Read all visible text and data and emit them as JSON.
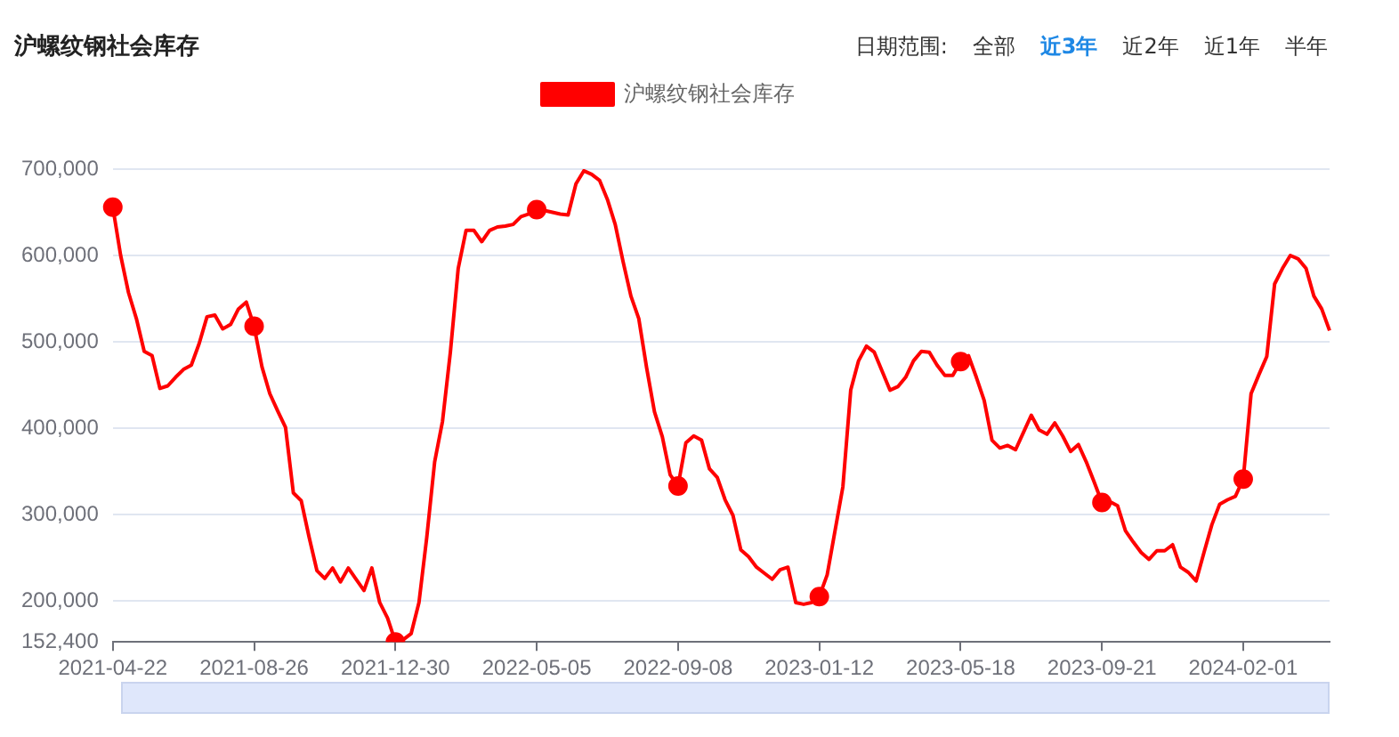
{
  "chart_data": {
    "type": "line",
    "title": "沪螺纹钢社会库存",
    "annotations": [
      "日期范围:",
      "全部",
      "近3年",
      "近2年",
      "近1年",
      "半年"
    ],
    "categories": [
      "2021-04-22",
      null,
      null,
      null,
      null,
      null,
      null,
      null,
      null,
      null,
      null,
      null,
      null,
      null,
      null,
      null,
      null,
      null,
      "2021-08-26",
      null,
      null,
      null,
      null,
      null,
      null,
      null,
      null,
      null,
      null,
      null,
      null,
      null,
      null,
      null,
      null,
      null,
      "2021-12-30",
      null,
      null,
      null,
      null,
      null,
      null,
      null,
      null,
      null,
      null,
      null,
      null,
      null,
      null,
      null,
      null,
      null,
      "2022-05-05",
      null,
      null,
      null,
      null,
      null,
      null,
      null,
      null,
      null,
      null,
      null,
      null,
      null,
      null,
      null,
      null,
      null,
      "2022-09-08",
      null,
      null,
      null,
      null,
      null,
      null,
      null,
      null,
      null,
      null,
      null,
      null,
      null,
      null,
      null,
      null,
      null,
      "2023-01-12",
      null,
      null,
      null,
      null,
      null,
      null,
      null,
      null,
      null,
      null,
      null,
      null,
      null,
      null,
      null,
      null,
      null,
      "2023-05-18",
      null,
      null,
      null,
      null,
      null,
      null,
      null,
      null,
      null,
      null,
      null,
      null,
      null,
      null,
      null,
      null,
      null,
      "2023-09-21",
      null,
      null,
      null,
      null,
      null,
      null,
      null,
      null,
      null,
      null,
      null,
      null,
      null,
      null,
      null,
      null,
      null,
      "2024-02-01",
      null,
      null,
      null,
      null,
      null,
      null,
      null,
      null,
      null,
      null,
      null
    ],
    "series": [
      {
        "name": "沪螺纹钢社会库存",
        "color": "#ff0000",
        "values": [
          656000,
          600000,
          557000,
          527000,
          489000,
          484000,
          446000,
          449000,
          459000,
          468000,
          473000,
          498000,
          529000,
          531000,
          515000,
          520000,
          538000,
          546000,
          518000,
          471000,
          440000,
          420000,
          401000,
          325000,
          316000,
          274000,
          235000,
          226000,
          238000,
          222000,
          238000,
          225000,
          212000,
          238000,
          198000,
          180000,
          152400,
          155000,
          162000,
          198000,
          274000,
          361000,
          408000,
          488000,
          585000,
          629000,
          629000,
          616000,
          629000,
          633000,
          634000,
          636000,
          645000,
          648000,
          653000,
          652000,
          650000,
          648000,
          647000,
          683000,
          698000,
          694000,
          687000,
          665000,
          636000,
          593000,
          553000,
          527000,
          470000,
          419000,
          390000,
          346000,
          333000,
          383000,
          391000,
          386000,
          353000,
          343000,
          317000,
          299000,
          259000,
          251000,
          239000,
          232000,
          225000,
          236000,
          239000,
          198000,
          196000,
          198000,
          205000,
          230000,
          281000,
          332000,
          444000,
          478000,
          495000,
          488000,
          466000,
          444000,
          448000,
          459000,
          478000,
          489000,
          488000,
          473000,
          461000,
          461000,
          477000,
          484000,
          459000,
          432000,
          386000,
          377000,
          380000,
          375000,
          395000,
          415000,
          398000,
          393000,
          406000,
          391000,
          373000,
          381000,
          361000,
          338000,
          314000,
          315000,
          310000,
          281000,
          268000,
          256000,
          248000,
          258000,
          258000,
          265000,
          239000,
          233000,
          223000,
          256000,
          288000,
          312000,
          317000,
          321000,
          341000,
          440000,
          462000,
          483000,
          567000,
          585000,
          600000,
          596000,
          585000,
          553000,
          538000,
          513000
        ]
      },
      {
        "type": "scatter",
        "color": "#ff0000",
        "marker": "circle",
        "values": [
          656000,
          null,
          null,
          null,
          null,
          null,
          null,
          null,
          null,
          null,
          null,
          null,
          null,
          null,
          null,
          null,
          null,
          null,
          518000,
          null,
          null,
          null,
          null,
          null,
          null,
          null,
          null,
          null,
          null,
          null,
          null,
          null,
          null,
          null,
          null,
          null,
          152400,
          null,
          null,
          null,
          null,
          null,
          null,
          null,
          null,
          null,
          null,
          null,
          null,
          null,
          null,
          null,
          null,
          null,
          653000,
          null,
          null,
          null,
          null,
          null,
          null,
          null,
          null,
          null,
          null,
          null,
          null,
          null,
          null,
          null,
          null,
          null,
          333000,
          null,
          null,
          null,
          null,
          null,
          null,
          null,
          null,
          null,
          null,
          null,
          null,
          null,
          null,
          null,
          null,
          null,
          205000,
          null,
          null,
          null,
          null,
          null,
          null,
          null,
          null,
          null,
          null,
          null,
          null,
          null,
          null,
          null,
          null,
          null,
          477000,
          null,
          null,
          null,
          null,
          null,
          null,
          null,
          null,
          null,
          null,
          null,
          null,
          null,
          null,
          null,
          null,
          null,
          314000,
          null,
          null,
          null,
          null,
          null,
          null,
          null,
          null,
          null,
          null,
          null,
          null,
          null,
          null,
          null,
          null,
          null,
          341000,
          null,
          null,
          null,
          null,
          null,
          null,
          null,
          null,
          null,
          null,
          null
        ]
      }
    ],
    "ylim": [
      152400,
      700000
    ],
    "yticks": [
      {
        "value": 152400,
        "label": "152,400"
      },
      {
        "value": 200000,
        "label": "200,000"
      },
      {
        "value": 300000,
        "label": "300,000"
      },
      {
        "value": 400000,
        "label": "400,000"
      },
      {
        "value": 500000,
        "label": "500,000"
      },
      {
        "value": 600000,
        "label": "600,000"
      },
      {
        "value": 700000,
        "label": "700,000"
      }
    ],
    "grid": "y",
    "legend": "top",
    "line_style": "solid"
  }
}
